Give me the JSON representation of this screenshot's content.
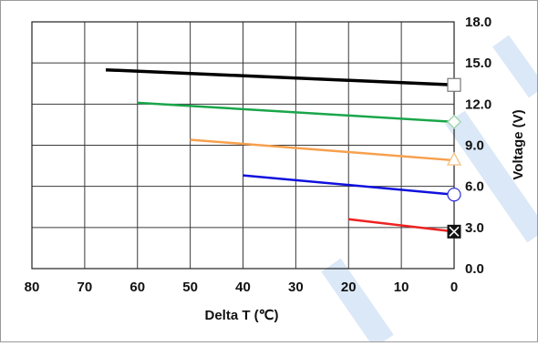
{
  "chart_data": {
    "type": "line",
    "xlabel": "Delta T (℃)",
    "ylabel": "Voltage (V)",
    "x_ticks": [
      "80",
      "70",
      "60",
      "50",
      "40",
      "30",
      "20",
      "10",
      "0"
    ],
    "y_ticks": [
      "0.0",
      "3.0",
      "6.0",
      "9.0",
      "12.0",
      "15.0",
      "18.0"
    ],
    "xlim": [
      80,
      0
    ],
    "x_reversed": true,
    "ylim": [
      0,
      18
    ],
    "grid": true,
    "legend": "none",
    "y_axis_position": "right",
    "series": [
      {
        "color": "#000000",
        "marker": "square-open",
        "x": [
          66,
          0
        ],
        "y": [
          14.5,
          13.4
        ]
      },
      {
        "color": "#19a64a",
        "marker": "diamond-open",
        "x": [
          60,
          0
        ],
        "y": [
          12.1,
          10.7
        ]
      },
      {
        "color": "#f7a04d",
        "marker": "triangle-open",
        "x": [
          50,
          0
        ],
        "y": [
          9.4,
          7.9
        ]
      },
      {
        "color": "#1111dd",
        "marker": "circle-open",
        "x": [
          40,
          0
        ],
        "y": [
          6.8,
          5.4
        ]
      },
      {
        "color": "#ee2222",
        "marker": "square-x-filled",
        "x": [
          20,
          0
        ],
        "y": [
          3.6,
          2.7
        ]
      }
    ]
  },
  "colors": {
    "watermark": "#dbe8f7",
    "grid": "#3a3a3a"
  }
}
